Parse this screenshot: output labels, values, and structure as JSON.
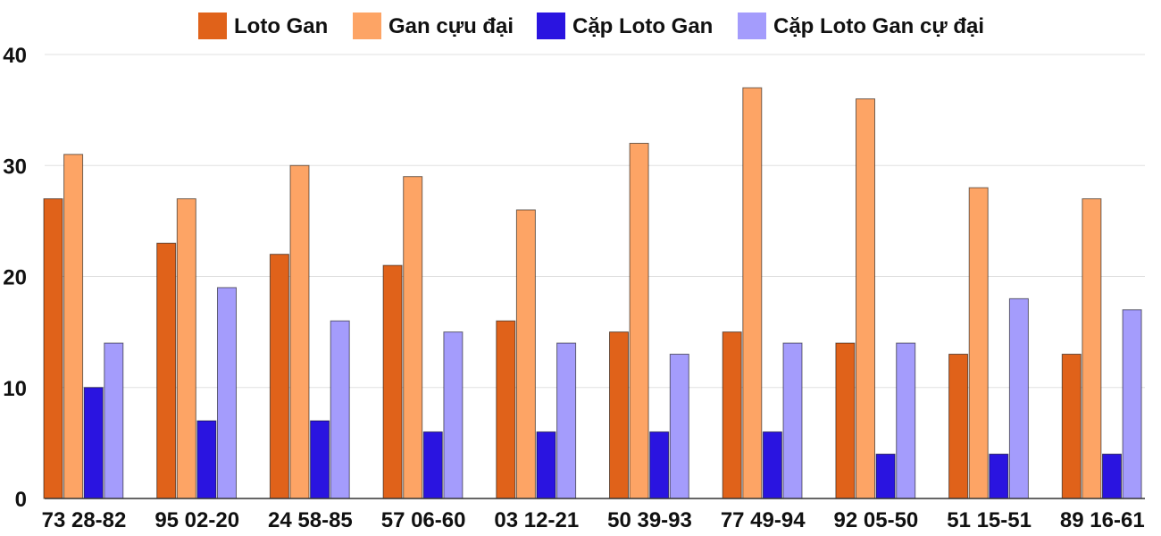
{
  "chart_data": {
    "type": "bar",
    "title": "",
    "xlabel": "",
    "ylabel": "",
    "ylim": [
      0,
      40
    ],
    "yticks": [
      "0",
      "10",
      "20",
      "30",
      "40"
    ],
    "grid": true,
    "legend_position": "top",
    "categories": [
      "73 28-82",
      "95 02-20",
      "24 58-85",
      "57 06-60",
      "03 12-21",
      "50 39-93",
      "77 49-94",
      "92 05-50",
      "51 15-51",
      "89 16-61"
    ],
    "series": [
      {
        "name": "Loto Gan",
        "color": "#e0621a",
        "values": [
          27,
          23,
          22,
          21,
          16,
          15,
          15,
          14,
          13,
          13
        ]
      },
      {
        "name": "Gan cựu đại",
        "color": "#fda465",
        "values": [
          31,
          27,
          30,
          29,
          26,
          32,
          37,
          36,
          28,
          27
        ]
      },
      {
        "name": "Cặp Loto Gan",
        "color": "#2a14e0",
        "values": [
          10,
          7,
          7,
          6,
          6,
          6,
          6,
          4,
          4,
          4
        ]
      },
      {
        "name": "Cặp Loto Gan cự đại",
        "color": "#a49cfc",
        "values": [
          14,
          19,
          16,
          15,
          14,
          13,
          14,
          14,
          18,
          17
        ]
      }
    ]
  }
}
